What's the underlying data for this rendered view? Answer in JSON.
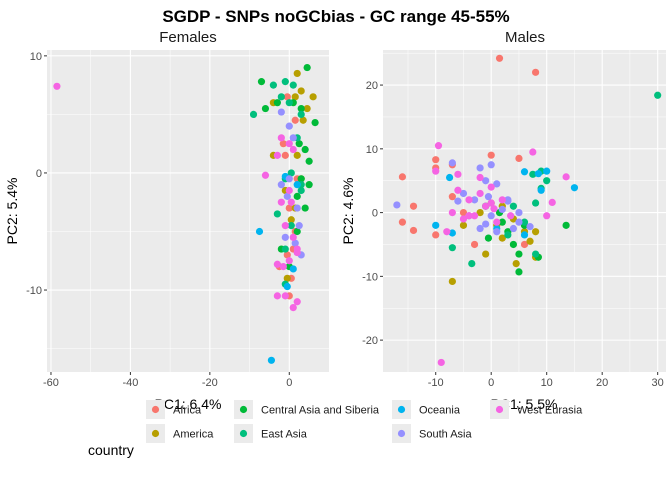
{
  "title": "SGDP - SNPs noGCbias - GC range 45-55%",
  "legend": {
    "title": "country",
    "entries": [
      {
        "name": "Africa",
        "color": "#F8766D"
      },
      {
        "name": "America",
        "color": "#B79F00"
      },
      {
        "name": "Central Asia and Siberia",
        "color": "#00BA38"
      },
      {
        "name": "East Asia",
        "color": "#00BF7D"
      },
      {
        "name": "Oceania",
        "color": "#00B4EF"
      },
      {
        "name": "South Asia",
        "color": "#9590FF"
      },
      {
        "name": "West Eurasia",
        "color": "#F564E3"
      }
    ],
    "placement": "bottom"
  },
  "chart_data": [
    {
      "type": "scatter",
      "panel_title": "Females",
      "xlabel": "PC1: 6.4%",
      "ylabel": "PC2: 5.4%",
      "xlim": [
        -61,
        10
      ],
      "ylim": [
        -17,
        10.5
      ],
      "x_ticks": [
        -60,
        -40,
        -20,
        0
      ],
      "y_ticks": [
        -10,
        0,
        10
      ],
      "grid": true,
      "series": [
        {
          "name": "Africa",
          "points": [
            [
              -0.5,
              6.5
            ],
            [
              1.5,
              4.5
            ],
            [
              -1,
              1.5
            ],
            [
              2,
              -0.5
            ],
            [
              0,
              -3
            ],
            [
              1.5,
              -5
            ],
            [
              -0.5,
              -7
            ],
            [
              0.5,
              -9
            ],
            [
              -2.5,
              -8
            ],
            [
              1,
              -6.5
            ],
            [
              -1.5,
              2.5
            ],
            [
              0,
              -10.5
            ]
          ]
        },
        {
          "name": "America",
          "points": [
            [
              2,
              8.5
            ],
            [
              1.5,
              6.5
            ],
            [
              3,
              7
            ],
            [
              4.5,
              5.5
            ],
            [
              6,
              6.5
            ],
            [
              3.5,
              4.5
            ],
            [
              -4,
              6
            ],
            [
              2,
              1.5
            ],
            [
              -1,
              -1.5
            ],
            [
              0.5,
              -4
            ],
            [
              3,
              -0.5
            ],
            [
              -0.5,
              -9
            ],
            [
              1.5,
              -3
            ],
            [
              -4,
              1.5
            ]
          ]
        },
        {
          "name": "Central Asia and Siberia",
          "points": [
            [
              -7,
              7.8
            ],
            [
              -3,
              6
            ],
            [
              4.5,
              9
            ],
            [
              1,
              6
            ],
            [
              3,
              5.5
            ],
            [
              6.5,
              4.3
            ],
            [
              2.5,
              2.5
            ],
            [
              4,
              2
            ],
            [
              5,
              1
            ],
            [
              3,
              -0.5
            ],
            [
              4,
              -3
            ],
            [
              2,
              -5
            ],
            [
              5,
              -1
            ],
            [
              0,
              -8
            ],
            [
              -2,
              -6.5
            ],
            [
              -6,
              5.5
            ],
            [
              2,
              -2
            ]
          ]
        },
        {
          "name": "East Asia",
          "points": [
            [
              -9,
              5
            ],
            [
              -4,
              7.5
            ],
            [
              -1,
              7.8
            ],
            [
              1,
              7.5
            ],
            [
              3,
              5
            ],
            [
              -2,
              6.5
            ],
            [
              0,
              6
            ],
            [
              2,
              3
            ],
            [
              -1,
              -0.5
            ],
            [
              0.5,
              0
            ],
            [
              3,
              -1.5
            ],
            [
              -3,
              -3.5
            ],
            [
              0.5,
              -4.5
            ],
            [
              -1,
              -6.5
            ],
            [
              -1,
              -9.5
            ],
            [
              3,
              -1
            ]
          ]
        },
        {
          "name": "Oceania",
          "points": [
            [
              -7.5,
              -5
            ],
            [
              -4.5,
              -16
            ],
            [
              -0.5,
              -9.7
            ],
            [
              1,
              -8.2
            ],
            [
              2,
              -1
            ],
            [
              -1,
              -0.3
            ]
          ]
        },
        {
          "name": "South Asia",
          "points": [
            [
              -2,
              5.2
            ],
            [
              0,
              4
            ],
            [
              1,
              3
            ],
            [
              -0.5,
              -2
            ],
            [
              2,
              -3
            ],
            [
              1.5,
              -6
            ],
            [
              -1,
              -5.5
            ],
            [
              3,
              -7
            ],
            [
              0,
              -0.5
            ],
            [
              -2,
              -1
            ],
            [
              2.5,
              -4.5
            ]
          ]
        },
        {
          "name": "West Eurasia",
          "points": [
            [
              -58.5,
              7.4
            ],
            [
              -2,
              3
            ],
            [
              1,
              2
            ],
            [
              -3,
              1.5
            ],
            [
              0,
              2.5
            ],
            [
              -6,
              -0.2
            ],
            [
              -2,
              -2.5
            ],
            [
              0,
              -1.5
            ],
            [
              0.5,
              -2.5
            ],
            [
              -1,
              -4.5
            ],
            [
              1,
              -5.5
            ],
            [
              2,
              -6.8
            ],
            [
              -1.5,
              -8
            ],
            [
              0,
              -7.5
            ],
            [
              -3,
              -10.5
            ],
            [
              -1,
              -10.5
            ],
            [
              2,
              -11
            ],
            [
              1,
              -11.5
            ],
            [
              -3,
              -7.8
            ],
            [
              2,
              -6.5
            ]
          ]
        }
      ]
    },
    {
      "type": "scatter",
      "panel_title": "Males",
      "xlabel": "PC1: 5.5%",
      "ylabel": "PC2: 4.6%",
      "xlim": [
        -19.5,
        31.5
      ],
      "ylim": [
        -25,
        25.5
      ],
      "x_ticks": [
        -10,
        0,
        10,
        20,
        30
      ],
      "y_ticks": [
        -20,
        -10,
        0,
        10,
        20
      ],
      "grid": true,
      "series": [
        {
          "name": "Africa",
          "points": [
            [
              1.5,
              24.2
            ],
            [
              8,
              22
            ],
            [
              -16,
              5.6
            ],
            [
              -14,
              1
            ],
            [
              -16,
              -1.5
            ],
            [
              -14,
              -2.8
            ],
            [
              -10,
              8.3
            ],
            [
              -10,
              7
            ],
            [
              -7,
              7.5
            ],
            [
              0,
              9
            ],
            [
              5,
              8.5
            ],
            [
              -3,
              -5
            ],
            [
              -10,
              -3.5
            ],
            [
              -5,
              0
            ],
            [
              6,
              -5
            ],
            [
              -7,
              2.5
            ]
          ]
        },
        {
          "name": "America",
          "points": [
            [
              -7,
              -10.8
            ],
            [
              -5,
              -2
            ],
            [
              -1,
              -6.5
            ],
            [
              2,
              -4
            ],
            [
              0,
              1.5
            ],
            [
              1,
              -2
            ],
            [
              4,
              -1
            ],
            [
              6,
              -3
            ],
            [
              8,
              -7
            ],
            [
              7,
              -4.5
            ],
            [
              2,
              1
            ],
            [
              -2,
              0
            ],
            [
              4.5,
              -8
            ],
            [
              8,
              -3
            ]
          ]
        },
        {
          "name": "Central Asia and Siberia",
          "points": [
            [
              5,
              -9.3
            ],
            [
              3,
              -3
            ],
            [
              6,
              -2
            ],
            [
              4,
              -5
            ],
            [
              5,
              -6.5
            ],
            [
              8.5,
              -7
            ],
            [
              -0.5,
              -4
            ],
            [
              2,
              -1.5
            ],
            [
              13.5,
              -2
            ],
            [
              1.5,
              0
            ],
            [
              -1,
              1
            ]
          ]
        },
        {
          "name": "East Asia",
          "points": [
            [
              30,
              18.4
            ],
            [
              -3.5,
              -8
            ],
            [
              -7,
              -5.5
            ],
            [
              6,
              -1.5
            ],
            [
              7.5,
              6
            ],
            [
              9,
              6.5
            ],
            [
              10,
              5
            ],
            [
              9,
              3.8
            ],
            [
              8,
              1.5
            ],
            [
              4,
              1
            ],
            [
              3,
              -3.5
            ],
            [
              8,
              -6.5
            ]
          ]
        },
        {
          "name": "Oceania",
          "points": [
            [
              15,
              3.9
            ],
            [
              10,
              6.5
            ],
            [
              8.5,
              6.1
            ],
            [
              6,
              6.4
            ],
            [
              9,
              3.5
            ],
            [
              -10,
              -2
            ],
            [
              -7,
              -3.2
            ],
            [
              6,
              -3.5
            ],
            [
              -7.5,
              5.5
            ],
            [
              1,
              -2.5
            ]
          ]
        },
        {
          "name": "South Asia",
          "points": [
            [
              -7,
              7.8
            ],
            [
              0,
              7.5
            ],
            [
              -2,
              7
            ],
            [
              -1,
              5
            ],
            [
              1,
              4.5
            ],
            [
              -5,
              3
            ],
            [
              -3,
              2
            ],
            [
              2,
              0.5
            ],
            [
              3,
              1.8
            ],
            [
              -4,
              -0.5
            ],
            [
              -1,
              -1.8
            ],
            [
              1,
              -3
            ],
            [
              3,
              2
            ],
            [
              5,
              -1.5
            ],
            [
              7,
              -2.2
            ],
            [
              -6,
              1.8
            ],
            [
              4,
              -2.5
            ],
            [
              -17,
              1.2
            ],
            [
              0,
              -0.5
            ],
            [
              -2,
              -2.5
            ],
            [
              -0.5,
              2.5
            ],
            [
              5,
              0
            ]
          ]
        },
        {
          "name": "West Eurasia",
          "points": [
            [
              -9,
              -23.5
            ],
            [
              -9.5,
              10.5
            ],
            [
              -10,
              6.5
            ],
            [
              -6,
              6
            ],
            [
              -2,
              5.5
            ],
            [
              0,
              4
            ],
            [
              -6,
              3.5
            ],
            [
              -4,
              2
            ],
            [
              -2,
              3
            ],
            [
              -7,
              0
            ],
            [
              0,
              1.5
            ],
            [
              -3,
              -0.5
            ],
            [
              1,
              -1.5
            ],
            [
              3.5,
              -0.5
            ],
            [
              -5,
              -1
            ],
            [
              -8,
              -3
            ],
            [
              10,
              -0.5
            ],
            [
              13.5,
              5.6
            ],
            [
              7.5,
              9.5
            ],
            [
              11,
              1.6
            ],
            [
              -1,
              1
            ],
            [
              2,
              2
            ],
            [
              -4,
              -0.5
            ],
            [
              0.5,
              0.6
            ]
          ]
        }
      ]
    }
  ]
}
